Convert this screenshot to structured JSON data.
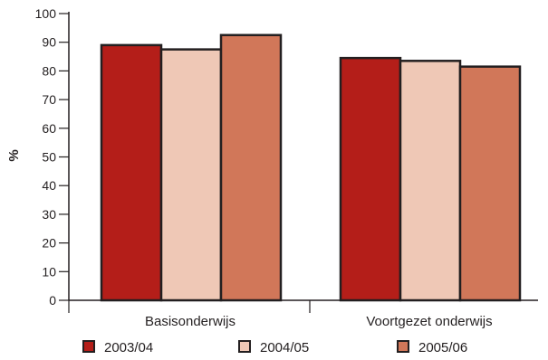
{
  "chart_data": {
    "type": "bar",
    "ylabel": "%",
    "xlabel": "",
    "ylim": [
      0,
      100
    ],
    "yticks": [
      0,
      10,
      20,
      30,
      40,
      50,
      60,
      70,
      80,
      90,
      100
    ],
    "categories": [
      "Basisonderwijs",
      "Voortgezet onderwijs"
    ],
    "series": [
      {
        "name": "2003/04",
        "color": "#b41e19",
        "values": [
          89,
          84.5
        ]
      },
      {
        "name": "2004/05",
        "color": "#efc8b6",
        "values": [
          87.5,
          83.5
        ]
      },
      {
        "name": "2005/06",
        "color": "#d17759",
        "values": [
          92.5,
          81.5
        ]
      }
    ],
    "grid": false,
    "legend": "bottom"
  }
}
